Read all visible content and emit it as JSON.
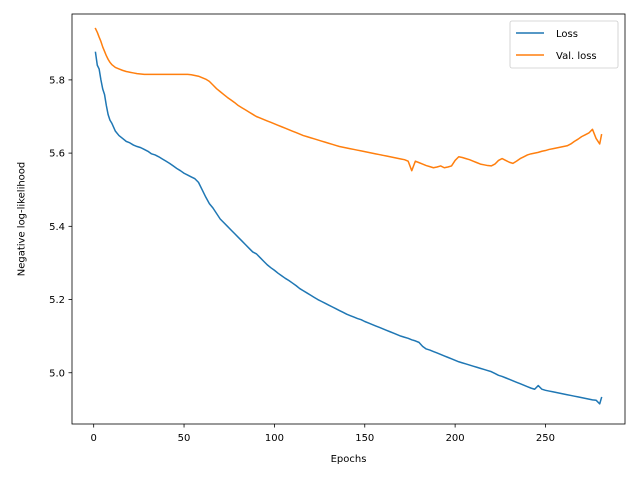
{
  "chart_data": {
    "type": "line",
    "title": "",
    "xlabel": "Epochs",
    "ylabel": "Negative log-likelihood",
    "xlim": [
      -12,
      294
    ],
    "ylim": [
      4.86,
      5.98
    ],
    "xticks": [
      0,
      50,
      100,
      150,
      200,
      250
    ],
    "yticks": [
      5.0,
      5.2,
      5.4,
      5.6,
      5.8
    ],
    "ytick_labels": [
      "5.0",
      "5.2",
      "5.4",
      "5.6",
      "5.8"
    ],
    "grid": false,
    "legend_position": "top-right",
    "series": [
      {
        "name": "Loss",
        "color": "#1f77b4",
        "points": [
          [
            1,
            5.875
          ],
          [
            2,
            5.84
          ],
          [
            3,
            5.83
          ],
          [
            4,
            5.8
          ],
          [
            5,
            5.775
          ],
          [
            6,
            5.76
          ],
          [
            7,
            5.73
          ],
          [
            8,
            5.705
          ],
          [
            9,
            5.69
          ],
          [
            10,
            5.682
          ],
          [
            12,
            5.66
          ],
          [
            14,
            5.648
          ],
          [
            16,
            5.64
          ],
          [
            18,
            5.632
          ],
          [
            20,
            5.628
          ],
          [
            22,
            5.622
          ],
          [
            24,
            5.618
          ],
          [
            26,
            5.615
          ],
          [
            28,
            5.61
          ],
          [
            30,
            5.605
          ],
          [
            32,
            5.598
          ],
          [
            34,
            5.595
          ],
          [
            36,
            5.59
          ],
          [
            38,
            5.584
          ],
          [
            40,
            5.578
          ],
          [
            42,
            5.572
          ],
          [
            44,
            5.565
          ],
          [
            46,
            5.558
          ],
          [
            48,
            5.552
          ],
          [
            50,
            5.545
          ],
          [
            52,
            5.54
          ],
          [
            54,
            5.535
          ],
          [
            56,
            5.53
          ],
          [
            58,
            5.52
          ],
          [
            60,
            5.5
          ],
          [
            62,
            5.48
          ],
          [
            64,
            5.462
          ],
          [
            66,
            5.45
          ],
          [
            68,
            5.435
          ],
          [
            70,
            5.42
          ],
          [
            72,
            5.41
          ],
          [
            74,
            5.4
          ],
          [
            76,
            5.39
          ],
          [
            78,
            5.38
          ],
          [
            80,
            5.37
          ],
          [
            82,
            5.36
          ],
          [
            84,
            5.35
          ],
          [
            86,
            5.34
          ],
          [
            88,
            5.33
          ],
          [
            90,
            5.325
          ],
          [
            92,
            5.315
          ],
          [
            94,
            5.305
          ],
          [
            96,
            5.295
          ],
          [
            98,
            5.287
          ],
          [
            100,
            5.28
          ],
          [
            102,
            5.272
          ],
          [
            104,
            5.265
          ],
          [
            106,
            5.258
          ],
          [
            108,
            5.252
          ],
          [
            110,
            5.245
          ],
          [
            112,
            5.238
          ],
          [
            114,
            5.23
          ],
          [
            116,
            5.224
          ],
          [
            118,
            5.218
          ],
          [
            120,
            5.212
          ],
          [
            122,
            5.206
          ],
          [
            124,
            5.2
          ],
          [
            126,
            5.195
          ],
          [
            128,
            5.19
          ],
          [
            130,
            5.185
          ],
          [
            132,
            5.18
          ],
          [
            134,
            5.175
          ],
          [
            136,
            5.17
          ],
          [
            138,
            5.165
          ],
          [
            140,
            5.16
          ],
          [
            142,
            5.156
          ],
          [
            144,
            5.152
          ],
          [
            146,
            5.148
          ],
          [
            148,
            5.145
          ],
          [
            150,
            5.14
          ],
          [
            152,
            5.136
          ],
          [
            154,
            5.132
          ],
          [
            156,
            5.128
          ],
          [
            158,
            5.124
          ],
          [
            160,
            5.12
          ],
          [
            162,
            5.116
          ],
          [
            164,
            5.112
          ],
          [
            166,
            5.108
          ],
          [
            168,
            5.104
          ],
          [
            170,
            5.1
          ],
          [
            172,
            5.097
          ],
          [
            174,
            5.094
          ],
          [
            176,
            5.09
          ],
          [
            178,
            5.087
          ],
          [
            180,
            5.083
          ],
          [
            182,
            5.072
          ],
          [
            184,
            5.065
          ],
          [
            186,
            5.062
          ],
          [
            188,
            5.058
          ],
          [
            190,
            5.054
          ],
          [
            192,
            5.05
          ],
          [
            194,
            5.046
          ],
          [
            196,
            5.042
          ],
          [
            198,
            5.038
          ],
          [
            200,
            5.034
          ],
          [
            202,
            5.03
          ],
          [
            204,
            5.027
          ],
          [
            206,
            5.024
          ],
          [
            208,
            5.021
          ],
          [
            210,
            5.018
          ],
          [
            212,
            5.015
          ],
          [
            214,
            5.012
          ],
          [
            216,
            5.009
          ],
          [
            218,
            5.006
          ],
          [
            220,
            5.003
          ],
          [
            222,
            4.998
          ],
          [
            224,
            4.993
          ],
          [
            226,
            4.99
          ],
          [
            228,
            4.986
          ],
          [
            230,
            4.982
          ],
          [
            232,
            4.978
          ],
          [
            234,
            4.974
          ],
          [
            236,
            4.97
          ],
          [
            238,
            4.966
          ],
          [
            240,
            4.962
          ],
          [
            242,
            4.958
          ],
          [
            244,
            4.955
          ],
          [
            246,
            4.965
          ],
          [
            248,
            4.955
          ],
          [
            250,
            4.952
          ],
          [
            252,
            4.95
          ],
          [
            254,
            4.948
          ],
          [
            256,
            4.946
          ],
          [
            258,
            4.944
          ],
          [
            260,
            4.942
          ],
          [
            262,
            4.94
          ],
          [
            264,
            4.938
          ],
          [
            266,
            4.936
          ],
          [
            268,
            4.934
          ],
          [
            270,
            4.932
          ],
          [
            272,
            4.93
          ],
          [
            274,
            4.928
          ],
          [
            276,
            4.926
          ],
          [
            278,
            4.925
          ],
          [
            280,
            4.915
          ],
          [
            281,
            4.932
          ]
        ]
      },
      {
        "name": "Val. loss",
        "color": "#ff7f0e",
        "points": [
          [
            1,
            5.94
          ],
          [
            2,
            5.93
          ],
          [
            3,
            5.917
          ],
          [
            4,
            5.905
          ],
          [
            5,
            5.89
          ],
          [
            6,
            5.878
          ],
          [
            7,
            5.866
          ],
          [
            8,
            5.856
          ],
          [
            9,
            5.848
          ],
          [
            10,
            5.842
          ],
          [
            12,
            5.834
          ],
          [
            14,
            5.83
          ],
          [
            16,
            5.826
          ],
          [
            18,
            5.823
          ],
          [
            20,
            5.821
          ],
          [
            22,
            5.819
          ],
          [
            24,
            5.817
          ],
          [
            26,
            5.816
          ],
          [
            28,
            5.815
          ],
          [
            30,
            5.815
          ],
          [
            32,
            5.815
          ],
          [
            34,
            5.815
          ],
          [
            36,
            5.815
          ],
          [
            38,
            5.815
          ],
          [
            40,
            5.815
          ],
          [
            42,
            5.815
          ],
          [
            44,
            5.815
          ],
          [
            46,
            5.815
          ],
          [
            48,
            5.815
          ],
          [
            50,
            5.815
          ],
          [
            52,
            5.815
          ],
          [
            54,
            5.814
          ],
          [
            56,
            5.812
          ],
          [
            58,
            5.81
          ],
          [
            60,
            5.806
          ],
          [
            62,
            5.802
          ],
          [
            64,
            5.796
          ],
          [
            66,
            5.786
          ],
          [
            68,
            5.776
          ],
          [
            70,
            5.768
          ],
          [
            72,
            5.76
          ],
          [
            74,
            5.752
          ],
          [
            76,
            5.745
          ],
          [
            78,
            5.738
          ],
          [
            80,
            5.73
          ],
          [
            82,
            5.724
          ],
          [
            84,
            5.718
          ],
          [
            86,
            5.712
          ],
          [
            88,
            5.706
          ],
          [
            90,
            5.7
          ],
          [
            92,
            5.696
          ],
          [
            94,
            5.692
          ],
          [
            96,
            5.688
          ],
          [
            98,
            5.684
          ],
          [
            100,
            5.68
          ],
          [
            102,
            5.676
          ],
          [
            104,
            5.672
          ],
          [
            106,
            5.668
          ],
          [
            108,
            5.664
          ],
          [
            110,
            5.66
          ],
          [
            112,
            5.656
          ],
          [
            114,
            5.652
          ],
          [
            116,
            5.648
          ],
          [
            118,
            5.645
          ],
          [
            120,
            5.642
          ],
          [
            122,
            5.639
          ],
          [
            124,
            5.636
          ],
          [
            126,
            5.633
          ],
          [
            128,
            5.63
          ],
          [
            130,
            5.627
          ],
          [
            132,
            5.624
          ],
          [
            134,
            5.621
          ],
          [
            136,
            5.618
          ],
          [
            138,
            5.616
          ],
          [
            140,
            5.614
          ],
          [
            142,
            5.612
          ],
          [
            144,
            5.61
          ],
          [
            146,
            5.608
          ],
          [
            148,
            5.606
          ],
          [
            150,
            5.604
          ],
          [
            152,
            5.602
          ],
          [
            154,
            5.6
          ],
          [
            156,
            5.598
          ],
          [
            158,
            5.596
          ],
          [
            160,
            5.594
          ],
          [
            162,
            5.592
          ],
          [
            164,
            5.59
          ],
          [
            166,
            5.588
          ],
          [
            168,
            5.586
          ],
          [
            170,
            5.584
          ],
          [
            172,
            5.582
          ],
          [
            174,
            5.578
          ],
          [
            176,
            5.552
          ],
          [
            178,
            5.578
          ],
          [
            180,
            5.574
          ],
          [
            182,
            5.57
          ],
          [
            184,
            5.566
          ],
          [
            186,
            5.563
          ],
          [
            188,
            5.56
          ],
          [
            190,
            5.562
          ],
          [
            192,
            5.565
          ],
          [
            194,
            5.56
          ],
          [
            196,
            5.562
          ],
          [
            198,
            5.565
          ],
          [
            200,
            5.58
          ],
          [
            202,
            5.59
          ],
          [
            204,
            5.588
          ],
          [
            206,
            5.585
          ],
          [
            208,
            5.582
          ],
          [
            210,
            5.578
          ],
          [
            212,
            5.574
          ],
          [
            214,
            5.57
          ],
          [
            216,
            5.568
          ],
          [
            218,
            5.566
          ],
          [
            220,
            5.565
          ],
          [
            222,
            5.57
          ],
          [
            224,
            5.58
          ],
          [
            226,
            5.585
          ],
          [
            228,
            5.58
          ],
          [
            230,
            5.575
          ],
          [
            232,
            5.572
          ],
          [
            234,
            5.578
          ],
          [
            236,
            5.585
          ],
          [
            238,
            5.59
          ],
          [
            240,
            5.595
          ],
          [
            242,
            5.598
          ],
          [
            244,
            5.6
          ],
          [
            246,
            5.602
          ],
          [
            248,
            5.605
          ],
          [
            250,
            5.607
          ],
          [
            252,
            5.61
          ],
          [
            254,
            5.612
          ],
          [
            256,
            5.614
          ],
          [
            258,
            5.616
          ],
          [
            260,
            5.618
          ],
          [
            262,
            5.62
          ],
          [
            264,
            5.625
          ],
          [
            266,
            5.632
          ],
          [
            268,
            5.638
          ],
          [
            270,
            5.645
          ],
          [
            272,
            5.65
          ],
          [
            274,
            5.655
          ],
          [
            276,
            5.665
          ],
          [
            278,
            5.64
          ],
          [
            280,
            5.625
          ],
          [
            281,
            5.65
          ]
        ]
      }
    ]
  }
}
